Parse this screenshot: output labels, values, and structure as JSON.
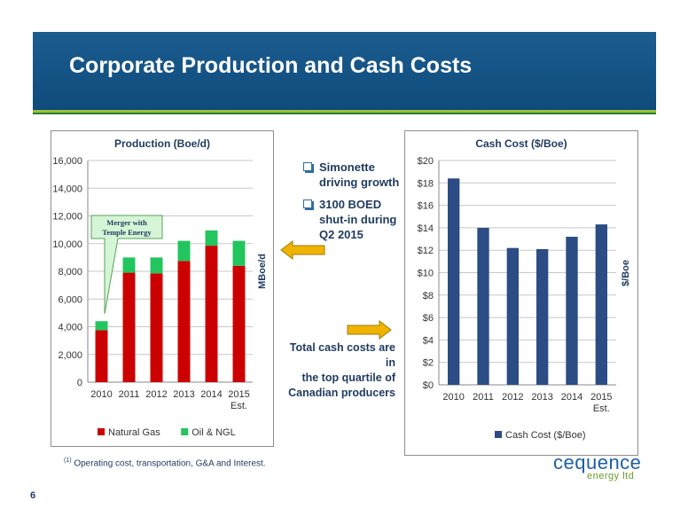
{
  "header": {
    "title": "Corporate Production and Cash Costs"
  },
  "colors": {
    "banner": "#0f4b7c",
    "natural_gas": "#cc0000",
    "oil_ngl": "#22c55e",
    "cash_cost": "#2b4c84",
    "arrow": "#f0b400"
  },
  "bullets": [
    "Simonette driving growth",
    "3100 BOED shut-in during Q2 2015"
  ],
  "note": [
    "Total cash costs are in",
    "the top quartile of",
    "Canadian producers"
  ],
  "footnote": {
    "marker": "(1)",
    "text": "Operating cost, transportation, G&A and Interest."
  },
  "page_number": "6",
  "logo": {
    "main": "cequence",
    "sub": "energy ltd"
  },
  "chart_data": [
    {
      "type": "bar",
      "stacked": true,
      "title": "Production (Boe/d)",
      "ylabel": "MBoe/d",
      "categories": [
        [
          "2010"
        ],
        [
          "2011"
        ],
        [
          "2012"
        ],
        [
          "2013"
        ],
        [
          "2014"
        ],
        [
          "2015",
          "Est."
        ]
      ],
      "series": [
        {
          "name": "Natural Gas",
          "color": "#cc0000",
          "values": [
            3750,
            7900,
            7850,
            8750,
            9850,
            8400
          ]
        },
        {
          "name": "Oil & NGL",
          "color": "#22c55e",
          "values": [
            650,
            1100,
            1150,
            1450,
            1100,
            1800
          ]
        }
      ],
      "ylim": [
        0,
        16000
      ],
      "yticks": [
        "0",
        "2,000",
        "4,000",
        "6,000",
        "8,000",
        "10,000",
        "12,000",
        "14,000",
        "16,000"
      ],
      "grid": true,
      "legend": "bottom",
      "annotation": [
        "Merger with",
        "Temple Energy"
      ]
    },
    {
      "type": "bar",
      "title": "Cash Cost ($/Boe)",
      "ylabel": "$/Boe",
      "categories": [
        [
          "2010"
        ],
        [
          "2011"
        ],
        [
          "2012"
        ],
        [
          "2013"
        ],
        [
          "2014"
        ],
        [
          "2015",
          "Est."
        ]
      ],
      "series": [
        {
          "name": "Cash Cost ($/Boe)",
          "color": "#2b4c84",
          "values": [
            18.4,
            14.0,
            12.2,
            12.1,
            13.2,
            14.3
          ]
        }
      ],
      "ylim": [
        0,
        20
      ],
      "yticks": [
        "$0",
        "$2",
        "$4",
        "$6",
        "$8",
        "$10",
        "$12",
        "$14",
        "$16",
        "$18",
        "$20"
      ],
      "grid": true,
      "legend": "bottom"
    }
  ]
}
